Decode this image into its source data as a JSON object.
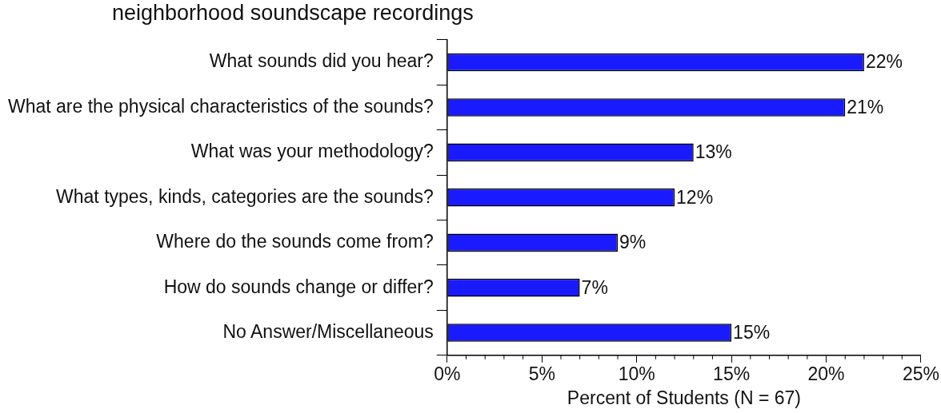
{
  "chart_data": {
    "type": "bar",
    "orientation": "horizontal",
    "title": "neighborhood soundscape recordings",
    "categories": [
      "What sounds did you hear?",
      "What are the physical characteristics of the sounds?",
      "What was your methodology?",
      "What types, kinds, categories are the sounds?",
      "Where do the sounds come from?",
      "How do sounds change or differ?",
      "No Answer/Miscellaneous"
    ],
    "values": [
      22,
      21,
      13,
      12,
      9,
      7,
      15
    ],
    "value_labels": [
      "22%",
      "21%",
      "13%",
      "12%",
      "9%",
      "7%",
      "15%"
    ],
    "color": "#1a1aff",
    "xlabel": "Percent of Students (N = 67)",
    "xlim": [
      0,
      25
    ],
    "xticks": [
      {
        "value": 0,
        "label": "0%"
      },
      {
        "value": 1,
        "label": null
      },
      {
        "value": 2,
        "label": null
      },
      {
        "value": 3,
        "label": null
      },
      {
        "value": 4,
        "label": null
      },
      {
        "value": 5,
        "label": "5%"
      },
      {
        "value": 6,
        "label": null
      },
      {
        "value": 7,
        "label": null
      },
      {
        "value": 8,
        "label": null
      },
      {
        "value": 9,
        "label": null
      },
      {
        "value": 10,
        "label": "10%"
      },
      {
        "value": 11,
        "label": null
      },
      {
        "value": 12,
        "label": null
      },
      {
        "value": 13,
        "label": null
      },
      {
        "value": 14,
        "label": null
      },
      {
        "value": 15,
        "label": "15%"
      },
      {
        "value": 16,
        "label": null
      },
      {
        "value": 17,
        "label": null
      },
      {
        "value": 18,
        "label": null
      },
      {
        "value": 19,
        "label": null
      },
      {
        "value": 20,
        "label": "20%"
      },
      {
        "value": 21,
        "label": null
      },
      {
        "value": 22,
        "label": null
      },
      {
        "value": 23,
        "label": null
      },
      {
        "value": 24,
        "label": null
      },
      {
        "value": 25,
        "label": "25%"
      }
    ]
  }
}
